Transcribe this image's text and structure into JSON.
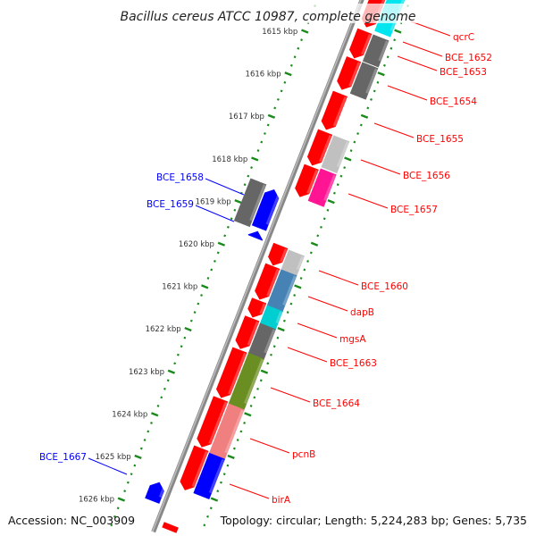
{
  "title": "Bacillus cereus ATCC 10987, complete genome",
  "footer": {
    "accession": "Accession: NC_003909",
    "topology": "Topology: circular; Length: 5,224,283 bp; Genes: 5,735"
  },
  "colors": {
    "backbone": "#888888",
    "ruler": "#1a8a1a",
    "forward_label": "#ff0000",
    "reverse_label": "#0000ff"
  },
  "ruler": {
    "ticks": [
      {
        "kbp": 1615,
        "label": "1615 kbp"
      },
      {
        "kbp": 1616,
        "label": "1616 kbp"
      },
      {
        "kbp": 1617,
        "label": "1617 kbp"
      },
      {
        "kbp": 1618,
        "label": "1618 kbp"
      },
      {
        "kbp": 1619,
        "label": "1619 kbp"
      },
      {
        "kbp": 1620,
        "label": "1620 kbp"
      },
      {
        "kbp": 1621,
        "label": "1621 kbp"
      },
      {
        "kbp": 1622,
        "label": "1622 kbp"
      },
      {
        "kbp": 1623,
        "label": "1623 kbp"
      },
      {
        "kbp": 1624,
        "label": "1624 kbp"
      },
      {
        "kbp": 1625,
        "label": "1625 kbp"
      },
      {
        "kbp": 1626,
        "label": "1626 kbp"
      }
    ]
  },
  "features": [
    {
      "label": "",
      "strand": "forward",
      "ring": "fwd1",
      "start": 1614.16,
      "end": 1614.9,
      "color": "#ff0000"
    },
    {
      "label": "",
      "strand": "forward",
      "ring": "fwd1",
      "start": 1615.0,
      "end": 1615.63,
      "color": "#ff0000"
    },
    {
      "label": "",
      "strand": "forward",
      "ring": "fwd1",
      "start": 1615.66,
      "end": 1616.37,
      "color": "#ff0000"
    },
    {
      "label": "",
      "strand": "forward",
      "ring": "fwd1",
      "start": 1616.47,
      "end": 1617.31,
      "color": "#ff0000"
    },
    {
      "label": "",
      "strand": "forward",
      "ring": "fwd1",
      "start": 1617.37,
      "end": 1618.15,
      "color": "#ff0000"
    },
    {
      "label": "",
      "strand": "forward",
      "ring": "fwd1",
      "start": 1618.19,
      "end": 1618.89,
      "color": "#ff0000"
    },
    {
      "label": "",
      "strand": "forward",
      "ring": "fwd1",
      "start": 1620.04,
      "end": 1620.5,
      "color": "#ff0000"
    },
    {
      "label": "",
      "strand": "forward",
      "ring": "fwd1",
      "start": 1620.52,
      "end": 1621.3,
      "color": "#ff0000"
    },
    {
      "label": "",
      "strand": "forward",
      "ring": "fwd1",
      "start": 1621.33,
      "end": 1621.72,
      "color": "#ff0000"
    },
    {
      "label": "",
      "strand": "forward",
      "ring": "fwd1",
      "start": 1621.75,
      "end": 1622.46,
      "color": "#ff0000"
    },
    {
      "label": "",
      "strand": "forward",
      "ring": "fwd1",
      "start": 1622.49,
      "end": 1623.61,
      "color": "#ff0000"
    },
    {
      "label": "",
      "strand": "forward",
      "ring": "fwd1",
      "start": 1623.64,
      "end": 1624.77,
      "color": "#ff0000"
    },
    {
      "label": "",
      "strand": "forward",
      "ring": "fwd1",
      "start": 1624.8,
      "end": 1625.78,
      "color": "#ff0000"
    },
    {
      "label": "",
      "strand": "forward",
      "ring": "fwd1",
      "start": 1626.6,
      "end": 1627.3,
      "color": "#ff0000"
    },
    {
      "label": "qcrC",
      "strand": "forward",
      "ring": "fwd2",
      "start": 1614.16,
      "end": 1615.06,
      "color": "#00e5ee"
    },
    {
      "label": "BCE_1652",
      "strand": "forward",
      "ring": "fwd2",
      "start": 1615.15,
      "end": 1615.77,
      "color": "#666666"
    },
    {
      "label": "BCE_1653",
      "strand": "forward",
      "ring": "fwd2",
      "start": 1615.8,
      "end": 1616.53,
      "color": "#666666"
    },
    {
      "label": "BCE_1654",
      "strand": "forward",
      "ring": "none",
      "start": 1616.47,
      "end": 1617.31,
      "color": "#ff0000"
    },
    {
      "label": "BCE_1655",
      "strand": "forward",
      "ring": "none",
      "start": 1617.37,
      "end": 1618.15,
      "color": "#ff0000"
    },
    {
      "label": "BCE_1656",
      "strand": "forward",
      "ring": "fwd2",
      "start": 1617.52,
      "end": 1618.26,
      "color": "#c0c0c0"
    },
    {
      "label": "BCE_1657",
      "strand": "forward",
      "ring": "fwd2",
      "start": 1618.3,
      "end": 1619.05,
      "color": "#ff1493"
    },
    {
      "label": "BCE_1658",
      "strand": "reverse",
      "ring": "rev2",
      "start": 1618.53,
      "end": 1619.52,
      "color": "#666666"
    },
    {
      "label": "BCE_1659",
      "strand": "reverse",
      "ring": "rev1",
      "start": 1618.72,
      "end": 1619.62,
      "color": "#0000ff"
    },
    {
      "label": "",
      "strand": "reverse",
      "ring": "rev1",
      "start": 1619.7,
      "end": 1619.85,
      "color": "#0000ff"
    },
    {
      "label": "BCE_1660",
      "strand": "forward",
      "ring": "fwd2",
      "start": 1620.21,
      "end": 1620.67,
      "color": "#c0c0c0"
    },
    {
      "label": "dapB",
      "strand": "forward",
      "ring": "fwd2",
      "start": 1620.67,
      "end": 1621.51,
      "color": "#4682b4"
    },
    {
      "label": "mgsA",
      "strand": "forward",
      "ring": "fwd2",
      "start": 1621.51,
      "end": 1621.93,
      "color": "#00ced1"
    },
    {
      "label": "BCE_1663",
      "strand": "forward",
      "ring": "fwd2",
      "start": 1621.93,
      "end": 1622.63,
      "color": "#666666"
    },
    {
      "label": "BCE_1664",
      "strand": "forward",
      "ring": "fwd2",
      "start": 1622.63,
      "end": 1623.82,
      "color": "#6b8e23"
    },
    {
      "label": "pcnB",
      "strand": "forward",
      "ring": "fwd2",
      "start": 1623.82,
      "end": 1624.98,
      "color": "#f08080"
    },
    {
      "label": "birA",
      "strand": "forward",
      "ring": "fwd2",
      "start": 1624.98,
      "end": 1625.92,
      "color": "#0000ff"
    },
    {
      "label": "BCE_1667",
      "strand": "reverse",
      "ring": "rev1",
      "start": 1625.6,
      "end": 1626.03,
      "color": "#0000ff"
    },
    {
      "label": "",
      "strand": "forward",
      "ring": "fwd2",
      "start": 1626.76,
      "end": 1627.3,
      "color": "#0000ff"
    }
  ]
}
